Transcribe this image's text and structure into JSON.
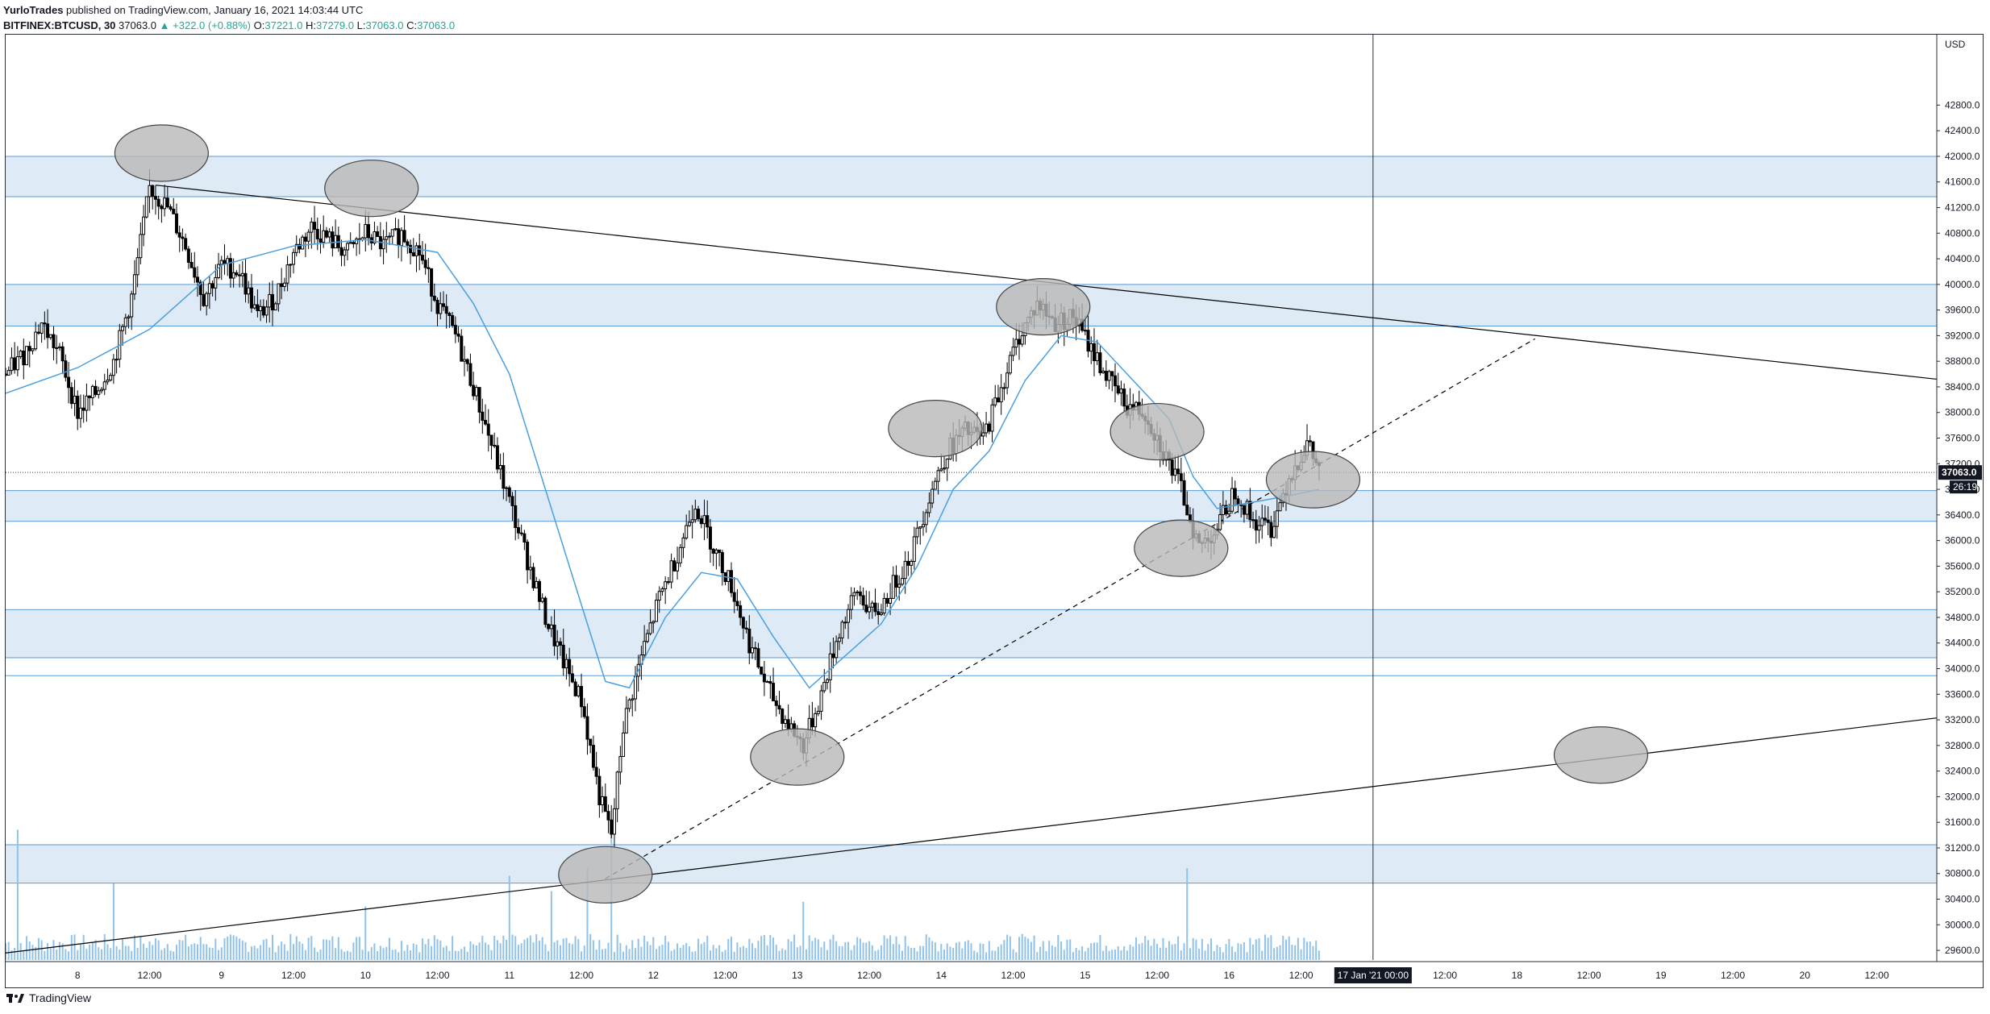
{
  "header": {
    "author": "YurloTrades",
    "published": "published on TradingView.com, January 16, 2021 14:03:44 UTC",
    "symbol": "BITFINEX:BTCUSD, 30",
    "last": "37063.0",
    "change": "+322.0 (+0.88%)",
    "open_label": "O:",
    "open": "37221.0",
    "high_label": "H:",
    "high": "37279.0",
    "low_label": "L:",
    "low": "37063.0",
    "close_label": "C:",
    "close": "37063.0"
  },
  "footer": {
    "brand": "TradingView"
  },
  "colors": {
    "zone_fill": "#deeaf6",
    "zone_line": "#5b9bd5",
    "ma": "#4a9fe0",
    "candle": "#000000",
    "volume": "#90c2ea",
    "ellipse": "#b8b8b8",
    "axis_text": "#131722"
  },
  "chart_data": {
    "type": "candlestick",
    "symbol": "BITFINEX:BTCUSD",
    "interval": "30",
    "y_axis": {
      "currency": "USD",
      "range": [
        29450,
        43900
      ],
      "ticks": [
        29600,
        30000,
        30400,
        30800,
        31200,
        31600,
        32000,
        32400,
        32800,
        33200,
        33600,
        34000,
        34400,
        34800,
        35200,
        35600,
        36000,
        36400,
        36800,
        37200,
        37600,
        38000,
        38400,
        38800,
        39200,
        39600,
        40000,
        40400,
        40800,
        41200,
        41600,
        42000,
        42400,
        42800
      ]
    },
    "x_axis": {
      "ticks": [
        {
          "label": "8",
          "t": 12
        },
        {
          "label": "12:00",
          "t": 24
        },
        {
          "label": "9",
          "t": 36
        },
        {
          "label": "12:00",
          "t": 48
        },
        {
          "label": "10",
          "t": 60
        },
        {
          "label": "12:00",
          "t": 72
        },
        {
          "label": "11",
          "t": 84
        },
        {
          "label": "12:00",
          "t": 96
        },
        {
          "label": "12",
          "t": 108
        },
        {
          "label": "12:00",
          "t": 120
        },
        {
          "label": "13",
          "t": 132
        },
        {
          "label": "12:00",
          "t": 144
        },
        {
          "label": "14",
          "t": 156
        },
        {
          "label": "12:00",
          "t": 168
        },
        {
          "label": "15",
          "t": 180
        },
        {
          "label": "12:00",
          "t": 192
        },
        {
          "label": "16",
          "t": 204
        },
        {
          "label": "12:00",
          "t": 216
        },
        {
          "label": "12:00",
          "t": 240
        },
        {
          "label": "18",
          "t": 252
        },
        {
          "label": "12:00",
          "t": 264
        },
        {
          "label": "19",
          "t": 276
        },
        {
          "label": "12:00",
          "t": 288
        },
        {
          "label": "20",
          "t": 300
        },
        {
          "label": "12:00",
          "t": 312
        }
      ],
      "cursor_label": "17 Jan '21   00:00",
      "cursor_t": 228,
      "range": [
        0,
        322
      ]
    },
    "price_label": "37063.0",
    "countdown": "26:19",
    "close_line": 37063,
    "zones": [
      {
        "from": 41370,
        "to": 42000
      },
      {
        "from": 39350,
        "to": 40000
      },
      {
        "from": 36300,
        "to": 36780
      },
      {
        "from": 34170,
        "to": 34920
      },
      {
        "from": 33890,
        "to": 33890
      },
      {
        "from": 30650,
        "to": 31250
      }
    ],
    "trendlines": [
      {
        "style": "solid",
        "points": [
          [
            0,
            29560
          ],
          [
            322,
            33230
          ]
        ]
      },
      {
        "style": "solid",
        "points": [
          [
            25,
            41550
          ],
          [
            322,
            38520
          ]
        ]
      },
      {
        "style": "dashed",
        "points": [
          [
            100,
            30720
          ],
          [
            255,
            39150
          ]
        ]
      }
    ],
    "highlights": [
      {
        "t": 26,
        "p": 42050
      },
      {
        "t": 61,
        "p": 41500
      },
      {
        "t": 173,
        "p": 39650
      },
      {
        "t": 155,
        "p": 37750
      },
      {
        "t": 192,
        "p": 37700
      },
      {
        "t": 218,
        "p": 36950
      },
      {
        "t": 196,
        "p": 35880
      },
      {
        "t": 132,
        "p": 32620
      },
      {
        "t": 100,
        "p": 30780
      },
      {
        "t": 266,
        "p": 32650
      }
    ],
    "price_path": [
      [
        0,
        38600
      ],
      [
        3,
        38900
      ],
      [
        6,
        39400
      ],
      [
        9,
        38900
      ],
      [
        12,
        38000
      ],
      [
        15,
        38300
      ],
      [
        18,
        38800
      ],
      [
        21,
        39800
      ],
      [
        24,
        41500
      ],
      [
        27,
        41200
      ],
      [
        30,
        40600
      ],
      [
        33,
        39800
      ],
      [
        36,
        40300
      ],
      [
        39,
        40200
      ],
      [
        42,
        39500
      ],
      [
        45,
        39800
      ],
      [
        48,
        40500
      ],
      [
        51,
        40900
      ],
      [
        54,
        40700
      ],
      [
        57,
        40500
      ],
      [
        60,
        40800
      ],
      [
        63,
        40600
      ],
      [
        66,
        40800
      ],
      [
        69,
        40500
      ],
      [
        72,
        39700
      ],
      [
        75,
        39200
      ],
      [
        78,
        38400
      ],
      [
        81,
        37500
      ],
      [
        84,
        36600
      ],
      [
        87,
        35700
      ],
      [
        90,
        34800
      ],
      [
        93,
        34100
      ],
      [
        96,
        33500
      ],
      [
        99,
        32000
      ],
      [
        101,
        31400
      ],
      [
        103,
        33100
      ],
      [
        106,
        34200
      ],
      [
        109,
        35100
      ],
      [
        112,
        35800
      ],
      [
        115,
        36600
      ],
      [
        118,
        35900
      ],
      [
        121,
        35300
      ],
      [
        124,
        34400
      ],
      [
        127,
        33700
      ],
      [
        130,
        33200
      ],
      [
        133,
        32800
      ],
      [
        136,
        33600
      ],
      [
        139,
        34600
      ],
      [
        142,
        35200
      ],
      [
        145,
        34800
      ],
      [
        148,
        35300
      ],
      [
        151,
        35800
      ],
      [
        154,
        36700
      ],
      [
        157,
        37400
      ],
      [
        160,
        37700
      ],
      [
        163,
        37600
      ],
      [
        166,
        38400
      ],
      [
        169,
        39200
      ],
      [
        172,
        39700
      ],
      [
        175,
        39400
      ],
      [
        178,
        39500
      ],
      [
        181,
        39000
      ],
      [
        184,
        38500
      ],
      [
        187,
        38100
      ],
      [
        190,
        38000
      ],
      [
        193,
        37400
      ],
      [
        196,
        36800
      ],
      [
        199,
        35900
      ],
      [
        202,
        36200
      ],
      [
        205,
        36800
      ],
      [
        208,
        36300
      ],
      [
        211,
        36200
      ],
      [
        214,
        37000
      ],
      [
        217,
        37500
      ],
      [
        219,
        37100
      ]
    ],
    "ma_path": [
      [
        0,
        38300
      ],
      [
        12,
        38700
      ],
      [
        24,
        39300
      ],
      [
        36,
        40300
      ],
      [
        48,
        40600
      ],
      [
        60,
        40700
      ],
      [
        72,
        40500
      ],
      [
        78,
        39700
      ],
      [
        84,
        38600
      ],
      [
        90,
        36800
      ],
      [
        96,
        35000
      ],
      [
        100,
        33800
      ],
      [
        104,
        33700
      ],
      [
        110,
        34800
      ],
      [
        116,
        35500
      ],
      [
        122,
        35400
      ],
      [
        128,
        34500
      ],
      [
        134,
        33700
      ],
      [
        140,
        34200
      ],
      [
        146,
        34700
      ],
      [
        152,
        35600
      ],
      [
        158,
        36800
      ],
      [
        164,
        37400
      ],
      [
        170,
        38500
      ],
      [
        176,
        39200
      ],
      [
        182,
        39100
      ],
      [
        188,
        38500
      ],
      [
        194,
        37900
      ],
      [
        198,
        37000
      ],
      [
        202,
        36500
      ],
      [
        208,
        36600
      ],
      [
        214,
        36700
      ],
      [
        219,
        36800
      ]
    ],
    "volume_peaks": [
      {
        "t": 2,
        "v": 0.85
      },
      {
        "t": 18,
        "v": 0.5
      },
      {
        "t": 60,
        "v": 0.35
      },
      {
        "t": 84,
        "v": 0.55
      },
      {
        "t": 91,
        "v": 0.45
      },
      {
        "t": 97,
        "v": 0.6
      },
      {
        "t": 101,
        "v": 0.9
      },
      {
        "t": 133,
        "v": 0.38
      },
      {
        "t": 197,
        "v": 0.6
      }
    ]
  }
}
